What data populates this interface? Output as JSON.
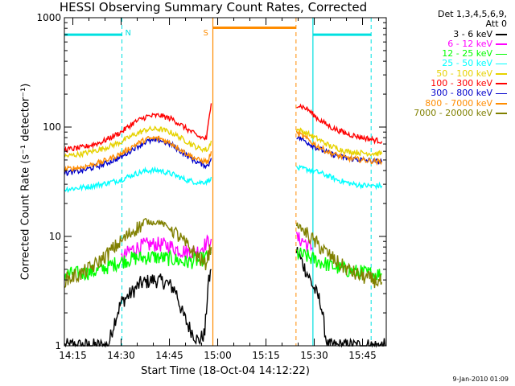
{
  "title": "HESSI Observing Summary Count Rates, Corrected",
  "legend_header": [
    "Det 1,3,4,5,6,9,",
    "Att 0"
  ],
  "footer_date": "9-Jan-2010 01:09",
  "chart_data": {
    "type": "line",
    "title": "HESSI Observing Summary Count Rates, Corrected",
    "xlabel": "Start Time (18-Oct-04 14:12:22)",
    "ylabel": "Corrected Count Rate (s⁻¹ detector⁻¹)",
    "xlim": [
      "14:12:22",
      "15:52:22"
    ],
    "ylim": [
      1,
      1000
    ],
    "yscale": "log",
    "x_ticks": [
      "14:15",
      "14:30",
      "14:45",
      "15:00",
      "15:15",
      "15:30",
      "15:45"
    ],
    "y_ticks": [
      "1",
      "10",
      "100",
      "1000"
    ],
    "legend_position": "right",
    "data_gap": [
      "14:58:30",
      "15:24:20"
    ],
    "series": [
      {
        "name": "3 - 6 keV",
        "color": "#000000",
        "segments": [
          [
            [
              "14:12:30",
              1.0
            ],
            [
              "14:26",
              1.0
            ],
            [
              "14:28",
              1.7
            ],
            [
              "14:30",
              2.5
            ],
            [
              "14:33",
              3.0
            ],
            [
              "14:36",
              3.7
            ],
            [
              "14:40",
              4.0
            ],
            [
              "14:44",
              3.8
            ],
            [
              "14:47",
              3.2
            ],
            [
              "14:49",
              2.0
            ],
            [
              "14:51",
              1.5
            ],
            [
              "14:54",
              1.1
            ],
            [
              "14:56",
              1.3
            ],
            [
              "14:57",
              3.5
            ],
            [
              "14:58",
              5.0
            ]
          ],
          [
            [
              "15:24:30",
              7.5
            ],
            [
              "15:26",
              6.0
            ],
            [
              "15:28",
              4.5
            ],
            [
              "15:30",
              3.3
            ],
            [
              "15:32",
              2.5
            ],
            [
              "15:34",
              1.0
            ],
            [
              "15:52",
              1.0
            ]
          ]
        ]
      },
      {
        "name": "6 - 12 keV",
        "color": "#ff00ff",
        "segments": [
          [
            [
              "14:30",
              6.2
            ],
            [
              "14:33",
              7.5
            ],
            [
              "14:37",
              8.3
            ],
            [
              "14:41",
              8.5
            ],
            [
              "14:45",
              8.2
            ],
            [
              "14:48",
              7.5
            ],
            [
              "14:51",
              7.2
            ],
            [
              "14:54",
              7.4
            ],
            [
              "14:56",
              8.4
            ],
            [
              "14:58",
              9.5
            ]
          ],
          [
            [
              "15:24:30",
              9.6
            ],
            [
              "15:27",
              9.0
            ],
            [
              "15:28",
              8.2
            ],
            [
              "15:29:30",
              7.8
            ]
          ]
        ]
      },
      {
        "name": "12 - 25 keV",
        "color": "#00ff00",
        "segments": [
          [
            [
              "14:12:30",
              4.5
            ],
            [
              "14:18",
              4.6
            ],
            [
              "14:22",
              4.8
            ],
            [
              "14:26",
              5.3
            ],
            [
              "14:30",
              5.9
            ],
            [
              "14:34",
              6.3
            ],
            [
              "14:40",
              6.5
            ],
            [
              "14:46",
              6.2
            ],
            [
              "14:50",
              5.8
            ],
            [
              "14:54",
              6.0
            ],
            [
              "14:57",
              6.5
            ],
            [
              "14:58",
              7.0
            ]
          ],
          [
            [
              "15:24:30",
              7.0
            ],
            [
              "15:28",
              6.5
            ],
            [
              "15:32",
              5.8
            ],
            [
              "15:37",
              5.2
            ],
            [
              "15:42",
              4.8
            ],
            [
              "15:47",
              4.6
            ],
            [
              "15:51",
              4.5
            ]
          ]
        ]
      },
      {
        "name": "25 - 50 keV",
        "color": "#00ffff",
        "segments": [
          [
            [
              "14:12:30",
              27
            ],
            [
              "14:18",
              28
            ],
            [
              "14:24",
              30
            ],
            [
              "14:30",
              33
            ],
            [
              "14:34",
              37
            ],
            [
              "14:38",
              40
            ],
            [
              "14:42",
              40
            ],
            [
              "14:46",
              37
            ],
            [
              "14:50",
              33
            ],
            [
              "14:54",
              31
            ],
            [
              "14:57",
              32
            ],
            [
              "14:58",
              35
            ]
          ],
          [
            [
              "15:24:30",
              42
            ],
            [
              "15:28",
              41
            ],
            [
              "15:32",
              38
            ],
            [
              "15:37",
              33
            ],
            [
              "15:42",
              30
            ],
            [
              "15:47",
              29
            ],
            [
              "15:51",
              29
            ]
          ]
        ]
      },
      {
        "name": "50 - 100 keV",
        "color": "#e6d200",
        "segments": [
          [
            [
              "14:12:30",
              54
            ],
            [
              "14:18",
              57
            ],
            [
              "14:24",
              63
            ],
            [
              "14:30",
              73
            ],
            [
              "14:34",
              85
            ],
            [
              "14:38",
              95
            ],
            [
              "14:42",
              96
            ],
            [
              "14:46",
              88
            ],
            [
              "14:50",
              75
            ],
            [
              "14:54",
              64
            ],
            [
              "14:57",
              62
            ],
            [
              "14:58",
              75
            ]
          ],
          [
            [
              "15:24:30",
              95
            ],
            [
              "15:26",
              92
            ],
            [
              "15:28",
              87
            ],
            [
              "15:31",
              78
            ],
            [
              "15:35",
              67
            ],
            [
              "15:40",
              60
            ],
            [
              "15:45",
              58
            ],
            [
              "15:51",
              57
            ]
          ]
        ]
      },
      {
        "name": "100 - 300 keV",
        "color": "#ff0000",
        "segments": [
          [
            [
              "14:12:30",
              62
            ],
            [
              "14:18",
              65
            ],
            [
              "14:24",
              73
            ],
            [
              "14:30",
              90
            ],
            [
              "14:34",
              110
            ],
            [
              "14:38",
              125
            ],
            [
              "14:42",
              128
            ],
            [
              "14:46",
              118
            ],
            [
              "14:50",
              98
            ],
            [
              "14:54",
              82
            ],
            [
              "14:56:30",
              78
            ],
            [
              "14:58",
              165
            ]
          ],
          [
            [
              "15:24:30",
              160
            ],
            [
              "15:26",
              155
            ],
            [
              "15:28",
              145
            ],
            [
              "15:31",
              120
            ],
            [
              "15:35",
              100
            ],
            [
              "15:40",
              87
            ],
            [
              "15:45",
              80
            ],
            [
              "15:51",
              74
            ]
          ]
        ]
      },
      {
        "name": "300 - 800 keV",
        "color": "#0000cc",
        "segments": [
          [
            [
              "14:12:30",
              38
            ],
            [
              "14:18",
              40
            ],
            [
              "14:24",
              45
            ],
            [
              "14:30",
              53
            ],
            [
              "14:34",
              64
            ],
            [
              "14:38",
              74
            ],
            [
              "14:42",
              76
            ],
            [
              "14:46",
              68
            ],
            [
              "14:50",
              56
            ],
            [
              "14:54",
              47
            ],
            [
              "14:57",
              44
            ],
            [
              "14:58",
              52
            ]
          ],
          [
            [
              "15:24:30",
              82
            ],
            [
              "15:26",
              78
            ],
            [
              "15:28",
              72
            ],
            [
              "15:31",
              64
            ],
            [
              "15:35",
              57
            ],
            [
              "15:40",
              52
            ],
            [
              "15:45",
              50
            ],
            [
              "15:51",
              48
            ]
          ]
        ]
      },
      {
        "name": "800 - 7000 keV",
        "color": "#ff8c00",
        "segments": [
          [
            [
              "14:12:30",
              41
            ],
            [
              "14:18",
              43
            ],
            [
              "14:24",
              48
            ],
            [
              "14:30",
              57
            ],
            [
              "14:34",
              68
            ],
            [
              "14:38",
              78
            ],
            [
              "14:42",
              79
            ],
            [
              "14:46",
              70
            ],
            [
              "14:50",
              58
            ],
            [
              "14:54",
              50
            ],
            [
              "14:57",
              48
            ],
            [
              "14:58",
              60
            ]
          ],
          [
            [
              "15:24:30",
              88
            ],
            [
              "15:26",
              84
            ],
            [
              "15:28",
              77
            ],
            [
              "15:31",
              67
            ],
            [
              "15:35",
              58
            ],
            [
              "15:40",
              52
            ],
            [
              "15:45",
              50
            ],
            [
              "15:51",
              48
            ]
          ]
        ]
      },
      {
        "name": "7000 - 20000 keV",
        "color": "#808000",
        "segments": [
          [
            [
              "14:12:30",
              4.0
            ],
            [
              "14:18",
              4.6
            ],
            [
              "14:22",
              5.5
            ],
            [
              "14:26",
              7.0
            ],
            [
              "14:30",
              9.0
            ],
            [
              "14:34",
              11.5
            ],
            [
              "14:38",
              13.5
            ],
            [
              "14:42",
              13.5
            ],
            [
              "14:46",
              11.5
            ],
            [
              "14:50",
              8.5
            ],
            [
              "14:54",
              6.5
            ],
            [
              "14:56",
              5.5
            ],
            [
              "14:58",
              8.0
            ]
          ],
          [
            [
              "15:24:30",
              13.0
            ],
            [
              "15:27",
              11.0
            ],
            [
              "15:30",
              9.0
            ],
            [
              "15:34",
              7.0
            ],
            [
              "15:38",
              5.5
            ],
            [
              "15:43",
              4.5
            ],
            [
              "15:47",
              4.1
            ],
            [
              "15:51",
              3.8
            ]
          ]
        ]
      }
    ],
    "annotations": [
      {
        "label": "N",
        "type": "night",
        "color": "#00e0e0",
        "bars": [
          [
            "14:12:22",
            "14:30:15"
          ],
          [
            "15:29:35",
            "15:47:40"
          ]
        ],
        "dashed_at": [
          "14:30:15",
          "15:47:40"
        ],
        "solid_at": [
          "15:29:35"
        ],
        "bar_level": 700
      },
      {
        "label": "S",
        "type": "saa",
        "color": "#ff8c00",
        "bars": [
          [
            "14:58:30",
            "15:24:20"
          ]
        ],
        "dashed_at": [
          "15:24:20"
        ],
        "solid_at": [
          "14:58:30"
        ],
        "bar_level": 810
      }
    ]
  }
}
